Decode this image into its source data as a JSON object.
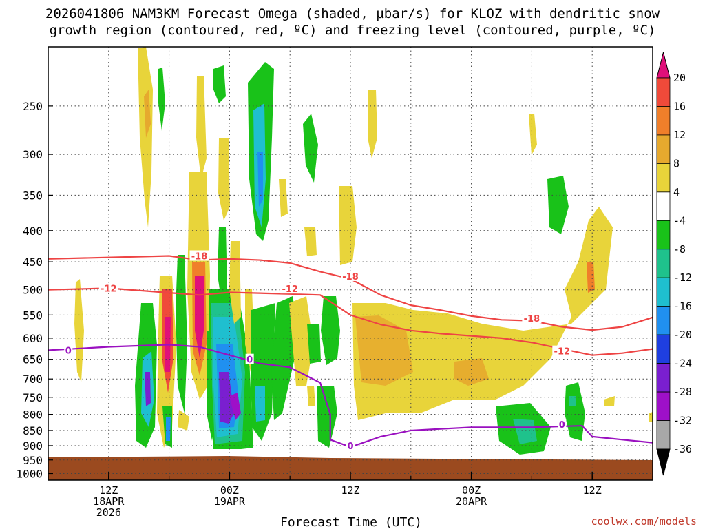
{
  "title_line1": "2026041806 NAM3KM Forecast Omega (shaded, µbar/s) for KLOZ with dendritic snow",
  "title_line2": "growth region (contoured, red, ºC) and freezing level (contoured, purple, ºC)",
  "credit": "coolwx.com/models",
  "chart_data": {
    "type": "heatmap",
    "xlabel": "Forecast Time (UTC)",
    "x_ticks": [
      {
        "time": "2026-04-18 12Z",
        "lines": [
          "12Z",
          "18APR",
          "2026"
        ]
      },
      {
        "time": "2026-04-19 00Z",
        "lines": [
          "00Z",
          "19APR"
        ]
      },
      {
        "time": "2026-04-19 12Z",
        "lines": [
          "12Z"
        ]
      },
      {
        "time": "2026-04-20 00Z",
        "lines": [
          "00Z",
          "20APR"
        ]
      },
      {
        "time": "2026-04-20 12Z",
        "lines": [
          "12Z"
        ]
      }
    ],
    "x_range": [
      "2026-04-18 06Z",
      "2026-04-20 18Z"
    ],
    "y_ticks": [
      "250",
      "300",
      "350",
      "400",
      "450",
      "500",
      "550",
      "600",
      "650",
      "700",
      "750",
      "800",
      "850",
      "900",
      "950",
      "1000"
    ],
    "y_range_hpa": [
      200,
      1025
    ],
    "y_scale": "log-pressure, inverted",
    "grid": "dotted",
    "colorbar": {
      "labels": [
        "20",
        "16",
        "12",
        "8",
        "4",
        "-4",
        "-8",
        "-12",
        "-16",
        "-20",
        "-24",
        "-28",
        "-32",
        "-36"
      ],
      "colors": [
        "#e0107a",
        "#f04a3a",
        "#f07f2a",
        "#e6a92e",
        "#e8d43a",
        "#ffffff",
        "#19c219",
        "#1fc28c",
        "#1fbfcf",
        "#2090f0",
        "#1f3fe0",
        "#7a1fd0",
        "#9e10c8",
        "#a8a8a8",
        "#000000"
      ]
    },
    "series": [
      {
        "value": "-18",
        "color": "#ee4444",
        "points": [
          [
            "2026-04-18 06Z",
            445
          ],
          [
            "2026-04-18 18Z",
            440
          ],
          [
            "2026-04-18 21Z",
            447
          ],
          [
            "2026-04-19 00Z",
            445
          ],
          [
            "2026-04-19 03Z",
            447
          ],
          [
            "2026-04-19 06Z",
            452
          ],
          [
            "2026-04-19 09Z",
            467
          ],
          [
            "2026-04-19 12Z",
            480
          ],
          [
            "2026-04-19 15Z",
            510
          ],
          [
            "2026-04-19 18Z",
            530
          ],
          [
            "2026-04-19 21Z",
            540
          ],
          [
            "2026-04-20 00Z",
            552
          ],
          [
            "2026-04-20 03Z",
            560
          ],
          [
            "2026-04-20 06Z",
            562
          ],
          [
            "2026-04-20 09Z",
            575
          ],
          [
            "2026-04-20 12Z",
            582
          ],
          [
            "2026-04-20 15Z",
            575
          ],
          [
            "2026-04-20 18Z",
            555
          ]
        ],
        "labels": [
          [
            "2026-04-18 21Z",
            440
          ],
          [
            "2026-04-19 12Z",
            475
          ],
          [
            "2026-04-20 06Z",
            557
          ]
        ]
      },
      {
        "value": "-12",
        "color": "#ee4444",
        "points": [
          [
            "2026-04-18 06Z",
            500
          ],
          [
            "2026-04-18 12Z",
            497
          ],
          [
            "2026-04-18 21Z",
            510
          ],
          [
            "2026-04-19 00Z",
            505
          ],
          [
            "2026-04-19 06Z",
            508
          ],
          [
            "2026-04-19 09Z",
            510
          ],
          [
            "2026-04-19 12Z",
            550
          ],
          [
            "2026-04-19 15Z",
            570
          ],
          [
            "2026-04-19 18Z",
            583
          ],
          [
            "2026-04-19 21Z",
            590
          ],
          [
            "2026-04-20 00Z",
            595
          ],
          [
            "2026-04-20 03Z",
            600
          ],
          [
            "2026-04-20 06Z",
            610
          ],
          [
            "2026-04-20 09Z",
            625
          ],
          [
            "2026-04-20 12Z",
            640
          ],
          [
            "2026-04-20 15Z",
            635
          ],
          [
            "2026-04-20 18Z",
            625
          ]
        ],
        "labels": [
          [
            "2026-04-18 12Z",
            497
          ],
          [
            "2026-04-19 06Z",
            498
          ],
          [
            "2026-04-20 09Z",
            630
          ]
        ]
      },
      {
        "value": "0",
        "color": "#9a10c0",
        "points": [
          [
            "2026-04-18 06Z",
            628
          ],
          [
            "2026-04-18 12Z",
            620
          ],
          [
            "2026-04-18 18Z",
            615
          ],
          [
            "2026-04-18 21Z",
            620
          ],
          [
            "2026-04-19 00Z",
            640
          ],
          [
            "2026-04-19 03Z",
            660
          ],
          [
            "2026-04-19 06Z",
            670
          ],
          [
            "2026-04-19 09Z",
            710
          ],
          [
            "2026-04-19 10Z",
            800
          ],
          [
            "2026-04-19 10Z",
            880
          ],
          [
            "2026-04-19 12Z",
            905
          ],
          [
            "2026-04-19 15Z",
            870
          ],
          [
            "2026-04-19 18Z",
            850
          ],
          [
            "2026-04-20 00Z",
            840
          ],
          [
            "2026-04-20 06Z",
            840
          ],
          [
            "2026-04-20 11Z",
            835
          ],
          [
            "2026-04-20 12Z",
            870
          ],
          [
            "2026-04-20 15Z",
            880
          ],
          [
            "2026-04-20 18Z",
            890
          ]
        ],
        "labels": [
          [
            "2026-04-18 08Z",
            628
          ],
          [
            "2026-04-19 02Z",
            650
          ],
          [
            "2026-04-19 12Z",
            900
          ],
          [
            "2026-04-20 09Z",
            830
          ]
        ]
      }
    ]
  }
}
